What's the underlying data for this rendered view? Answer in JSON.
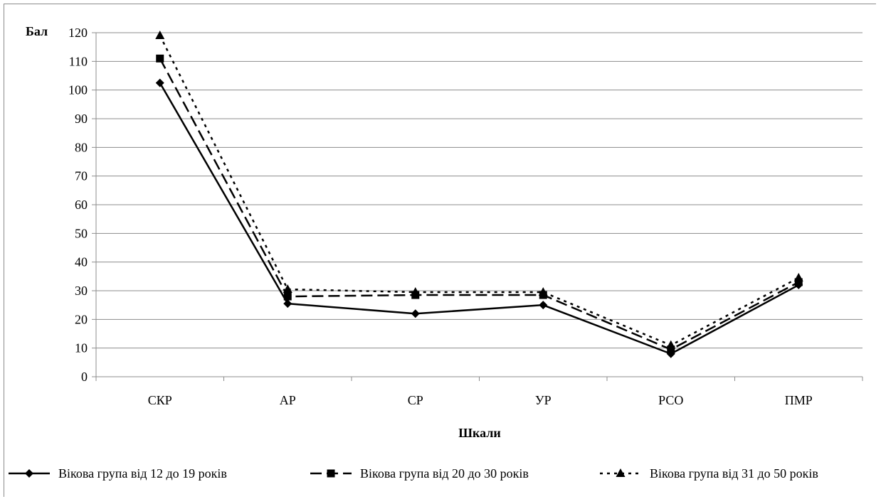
{
  "chart_data": {
    "type": "line",
    "title": "",
    "ylabel": "Бал",
    "xlabel": "Шкали",
    "categories": [
      "СКР",
      "АР",
      "СР",
      "УР",
      "РСО",
      "ПМР"
    ],
    "ylim": [
      0,
      120
    ],
    "ytick_step": 10,
    "grid": true,
    "legend_position": "bottom",
    "series": [
      {
        "name": "Вікова група від 12 до 19 років",
        "values": [
          102.5,
          25.5,
          22,
          25,
          8,
          32
        ],
        "line_style": "solid",
        "marker": "diamond",
        "color": "#000000"
      },
      {
        "name": "Вікова група від 20 до 30 років",
        "values": [
          111,
          28,
          28.5,
          28.5,
          9.5,
          33
        ],
        "line_style": "dashed",
        "marker": "square",
        "color": "#000000"
      },
      {
        "name": "Вікова група від 31 до 50 років",
        "values": [
          119,
          30.5,
          29.5,
          29.5,
          11,
          34.5
        ],
        "line_style": "dotted",
        "marker": "triangle",
        "color": "#000000"
      }
    ]
  }
}
